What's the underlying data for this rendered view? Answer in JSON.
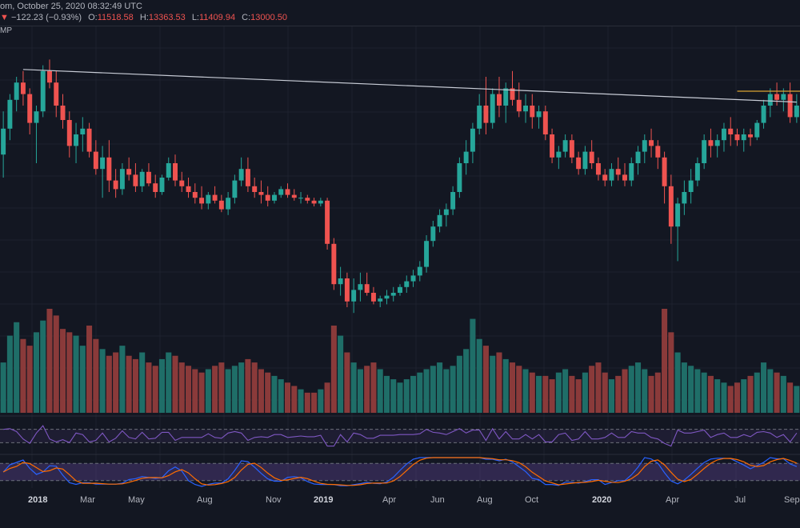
{
  "header": {
    "line1": "om, October 25, 2020 08:32:49 UTC",
    "down_marker": "▼",
    "change": "−122.23 (−0.93%)",
    "o_label": "O:",
    "o_value": "11518.58",
    "h_label": "H:",
    "h_value": "13363.53",
    "l_label": "L:",
    "l_value": "11409.94",
    "c_label": "C:",
    "c_value": "13000.50",
    "indicator_label": "MP"
  },
  "colors": {
    "background": "#131722",
    "up": "#26a69a",
    "down": "#ef5350",
    "up_volume": "#1f6e68",
    "down_volume": "#8a3a3a",
    "trendline": "#c8ccd6",
    "resistance": "#d9a233",
    "rsi": "#7e57c2",
    "stoch_k": "#2962ff",
    "stoch_d": "#ff6d00"
  },
  "chart_data": {
    "type": "candlestick",
    "title": "",
    "xlabel": "",
    "ylabel": "",
    "x_ticks": [
      "2018",
      "Mar",
      "May",
      "Aug",
      "Nov",
      "2019",
      "Apr",
      "Jun",
      "Aug",
      "Oct",
      "2020",
      "Apr",
      "Jul",
      "Sep"
    ],
    "x_ticks_bold": [
      "2018",
      "2019",
      "2020"
    ],
    "candles": [
      [
        63,
        78,
        55,
        72
      ],
      [
        72,
        84,
        68,
        82
      ],
      [
        82,
        90,
        78,
        88
      ],
      [
        88,
        92,
        80,
        84
      ],
      [
        84,
        86,
        70,
        74
      ],
      [
        74,
        80,
        60,
        78
      ],
      [
        78,
        94,
        76,
        92
      ],
      [
        92,
        96,
        86,
        88
      ],
      [
        88,
        92,
        76,
        80
      ],
      [
        80,
        84,
        72,
        75
      ],
      [
        75,
        78,
        62,
        66
      ],
      [
        66,
        74,
        60,
        70
      ],
      [
        70,
        76,
        64,
        72
      ],
      [
        72,
        74,
        62,
        64
      ],
      [
        64,
        68,
        56,
        58
      ],
      [
        58,
        66,
        48,
        62
      ],
      [
        62,
        68,
        50,
        54
      ],
      [
        54,
        58,
        48,
        51
      ],
      [
        51,
        60,
        49,
        58
      ],
      [
        58,
        62,
        54,
        56
      ],
      [
        56,
        60,
        50,
        52
      ],
      [
        52,
        58,
        50,
        57
      ],
      [
        57,
        60,
        52,
        53
      ],
      [
        53,
        56,
        48,
        50
      ],
      [
        50,
        56,
        49,
        55
      ],
      [
        55,
        62,
        54,
        60
      ],
      [
        60,
        63,
        52,
        54
      ],
      [
        54,
        57,
        50,
        52
      ],
      [
        52,
        55,
        48,
        50
      ],
      [
        50,
        53,
        46,
        48
      ],
      [
        48,
        52,
        44,
        46
      ],
      [
        46,
        50,
        44,
        49
      ],
      [
        49,
        52,
        46,
        47
      ],
      [
        47,
        49,
        43,
        44
      ],
      [
        44,
        50,
        42,
        48
      ],
      [
        48,
        56,
        46,
        54
      ],
      [
        54,
        62,
        52,
        58
      ],
      [
        58,
        62,
        50,
        52
      ],
      [
        52,
        55,
        48,
        50
      ],
      [
        50,
        54,
        46,
        49
      ],
      [
        49,
        52,
        45,
        47
      ],
      [
        47,
        50,
        46,
        49
      ],
      [
        49,
        52,
        48,
        51
      ],
      [
        51,
        53,
        48,
        49
      ],
      [
        49,
        51,
        47,
        48
      ],
      [
        48,
        50,
        46,
        48
      ],
      [
        48,
        49,
        46,
        47
      ],
      [
        47,
        48,
        45,
        46
      ],
      [
        46,
        48,
        45,
        47
      ],
      [
        47,
        48,
        30,
        32
      ],
      [
        32,
        34,
        16,
        18
      ],
      [
        18,
        24,
        14,
        20
      ],
      [
        20,
        22,
        10,
        12
      ],
      [
        12,
        20,
        8,
        16
      ],
      [
        16,
        22,
        12,
        18
      ],
      [
        18,
        22,
        14,
        15
      ],
      [
        15,
        17,
        11,
        12
      ],
      [
        12,
        14,
        10,
        13
      ],
      [
        13,
        16,
        11,
        14
      ],
      [
        14,
        17,
        12,
        15
      ],
      [
        15,
        18,
        14,
        17
      ],
      [
        17,
        21,
        15,
        19
      ],
      [
        19,
        23,
        17,
        21
      ],
      [
        21,
        26,
        19,
        24
      ],
      [
        24,
        35,
        22,
        33
      ],
      [
        33,
        40,
        31,
        38
      ],
      [
        38,
        44,
        36,
        42
      ],
      [
        42,
        46,
        38,
        44
      ],
      [
        44,
        52,
        42,
        50
      ],
      [
        50,
        62,
        48,
        60
      ],
      [
        60,
        68,
        56,
        64
      ],
      [
        64,
        74,
        60,
        72
      ],
      [
        72,
        84,
        70,
        80
      ],
      [
        80,
        90,
        70,
        74
      ],
      [
        74,
        86,
        72,
        84
      ],
      [
        84,
        90,
        76,
        80
      ],
      [
        80,
        88,
        74,
        86
      ],
      [
        86,
        92,
        80,
        82
      ],
      [
        82,
        88,
        76,
        78
      ],
      [
        78,
        84,
        74,
        80
      ],
      [
        80,
        84,
        72,
        76
      ],
      [
        76,
        80,
        72,
        78
      ],
      [
        78,
        80,
        68,
        70
      ],
      [
        70,
        72,
        60,
        62
      ],
      [
        62,
        66,
        58,
        64
      ],
      [
        64,
        70,
        62,
        68
      ],
      [
        68,
        70,
        60,
        62
      ],
      [
        62,
        64,
        56,
        58
      ],
      [
        58,
        66,
        56,
        64
      ],
      [
        64,
        68,
        58,
        60
      ],
      [
        60,
        62,
        54,
        56
      ],
      [
        56,
        58,
        52,
        54
      ],
      [
        54,
        60,
        52,
        58
      ],
      [
        58,
        62,
        54,
        56
      ],
      [
        56,
        60,
        52,
        54
      ],
      [
        54,
        62,
        52,
        60
      ],
      [
        60,
        66,
        56,
        64
      ],
      [
        64,
        70,
        60,
        68
      ],
      [
        68,
        72,
        62,
        66
      ],
      [
        66,
        68,
        58,
        62
      ],
      [
        62,
        64,
        46,
        52
      ],
      [
        52,
        56,
        32,
        38
      ],
      [
        38,
        48,
        26,
        46
      ],
      [
        46,
        54,
        42,
        50
      ],
      [
        50,
        58,
        46,
        54
      ],
      [
        54,
        62,
        52,
        60
      ],
      [
        60,
        70,
        58,
        68
      ],
      [
        68,
        72,
        62,
        66
      ],
      [
        66,
        70,
        62,
        68
      ],
      [
        68,
        74,
        64,
        72
      ],
      [
        72,
        76,
        66,
        70
      ],
      [
        70,
        72,
        66,
        68
      ],
      [
        68,
        72,
        64,
        70
      ],
      [
        70,
        72,
        66,
        69
      ],
      [
        69,
        75,
        68,
        74
      ],
      [
        74,
        82,
        72,
        80
      ],
      [
        80,
        86,
        76,
        84
      ],
      [
        84,
        88,
        80,
        82
      ],
      [
        82,
        86,
        78,
        84
      ],
      [
        84,
        88,
        74,
        76
      ],
      [
        76,
        84,
        74,
        80
      ]
    ],
    "volume": [
      30,
      46,
      54,
      44,
      40,
      48,
      55,
      62,
      58,
      50,
      48,
      46,
      40,
      52,
      44,
      38,
      34,
      36,
      40,
      34,
      32,
      36,
      30,
      28,
      32,
      36,
      34,
      30,
      28,
      26,
      24,
      26,
      28,
      30,
      26,
      28,
      30,
      32,
      30,
      26,
      24,
      22,
      20,
      18,
      16,
      14,
      12,
      12,
      14,
      18,
      52,
      46,
      36,
      30,
      26,
      28,
      30,
      26,
      22,
      20,
      18,
      20,
      22,
      24,
      26,
      28,
      30,
      26,
      28,
      34,
      38,
      56,
      44,
      40,
      34,
      36,
      32,
      30,
      28,
      26,
      24,
      22,
      22,
      20,
      24,
      26,
      22,
      20,
      24,
      28,
      30,
      24,
      20,
      22,
      26,
      28,
      30,
      26,
      22,
      24,
      62,
      48,
      36,
      30,
      28,
      26,
      24,
      22,
      20,
      18,
      16,
      18,
      20,
      22,
      24,
      30,
      26,
      24,
      22,
      18,
      16
    ],
    "trendline": {
      "start_index": 3,
      "end_index": 120
    },
    "resistance_from_index": 111,
    "rsi_range": [
      0,
      100
    ],
    "stoch_range": [
      0,
      100
    ]
  }
}
